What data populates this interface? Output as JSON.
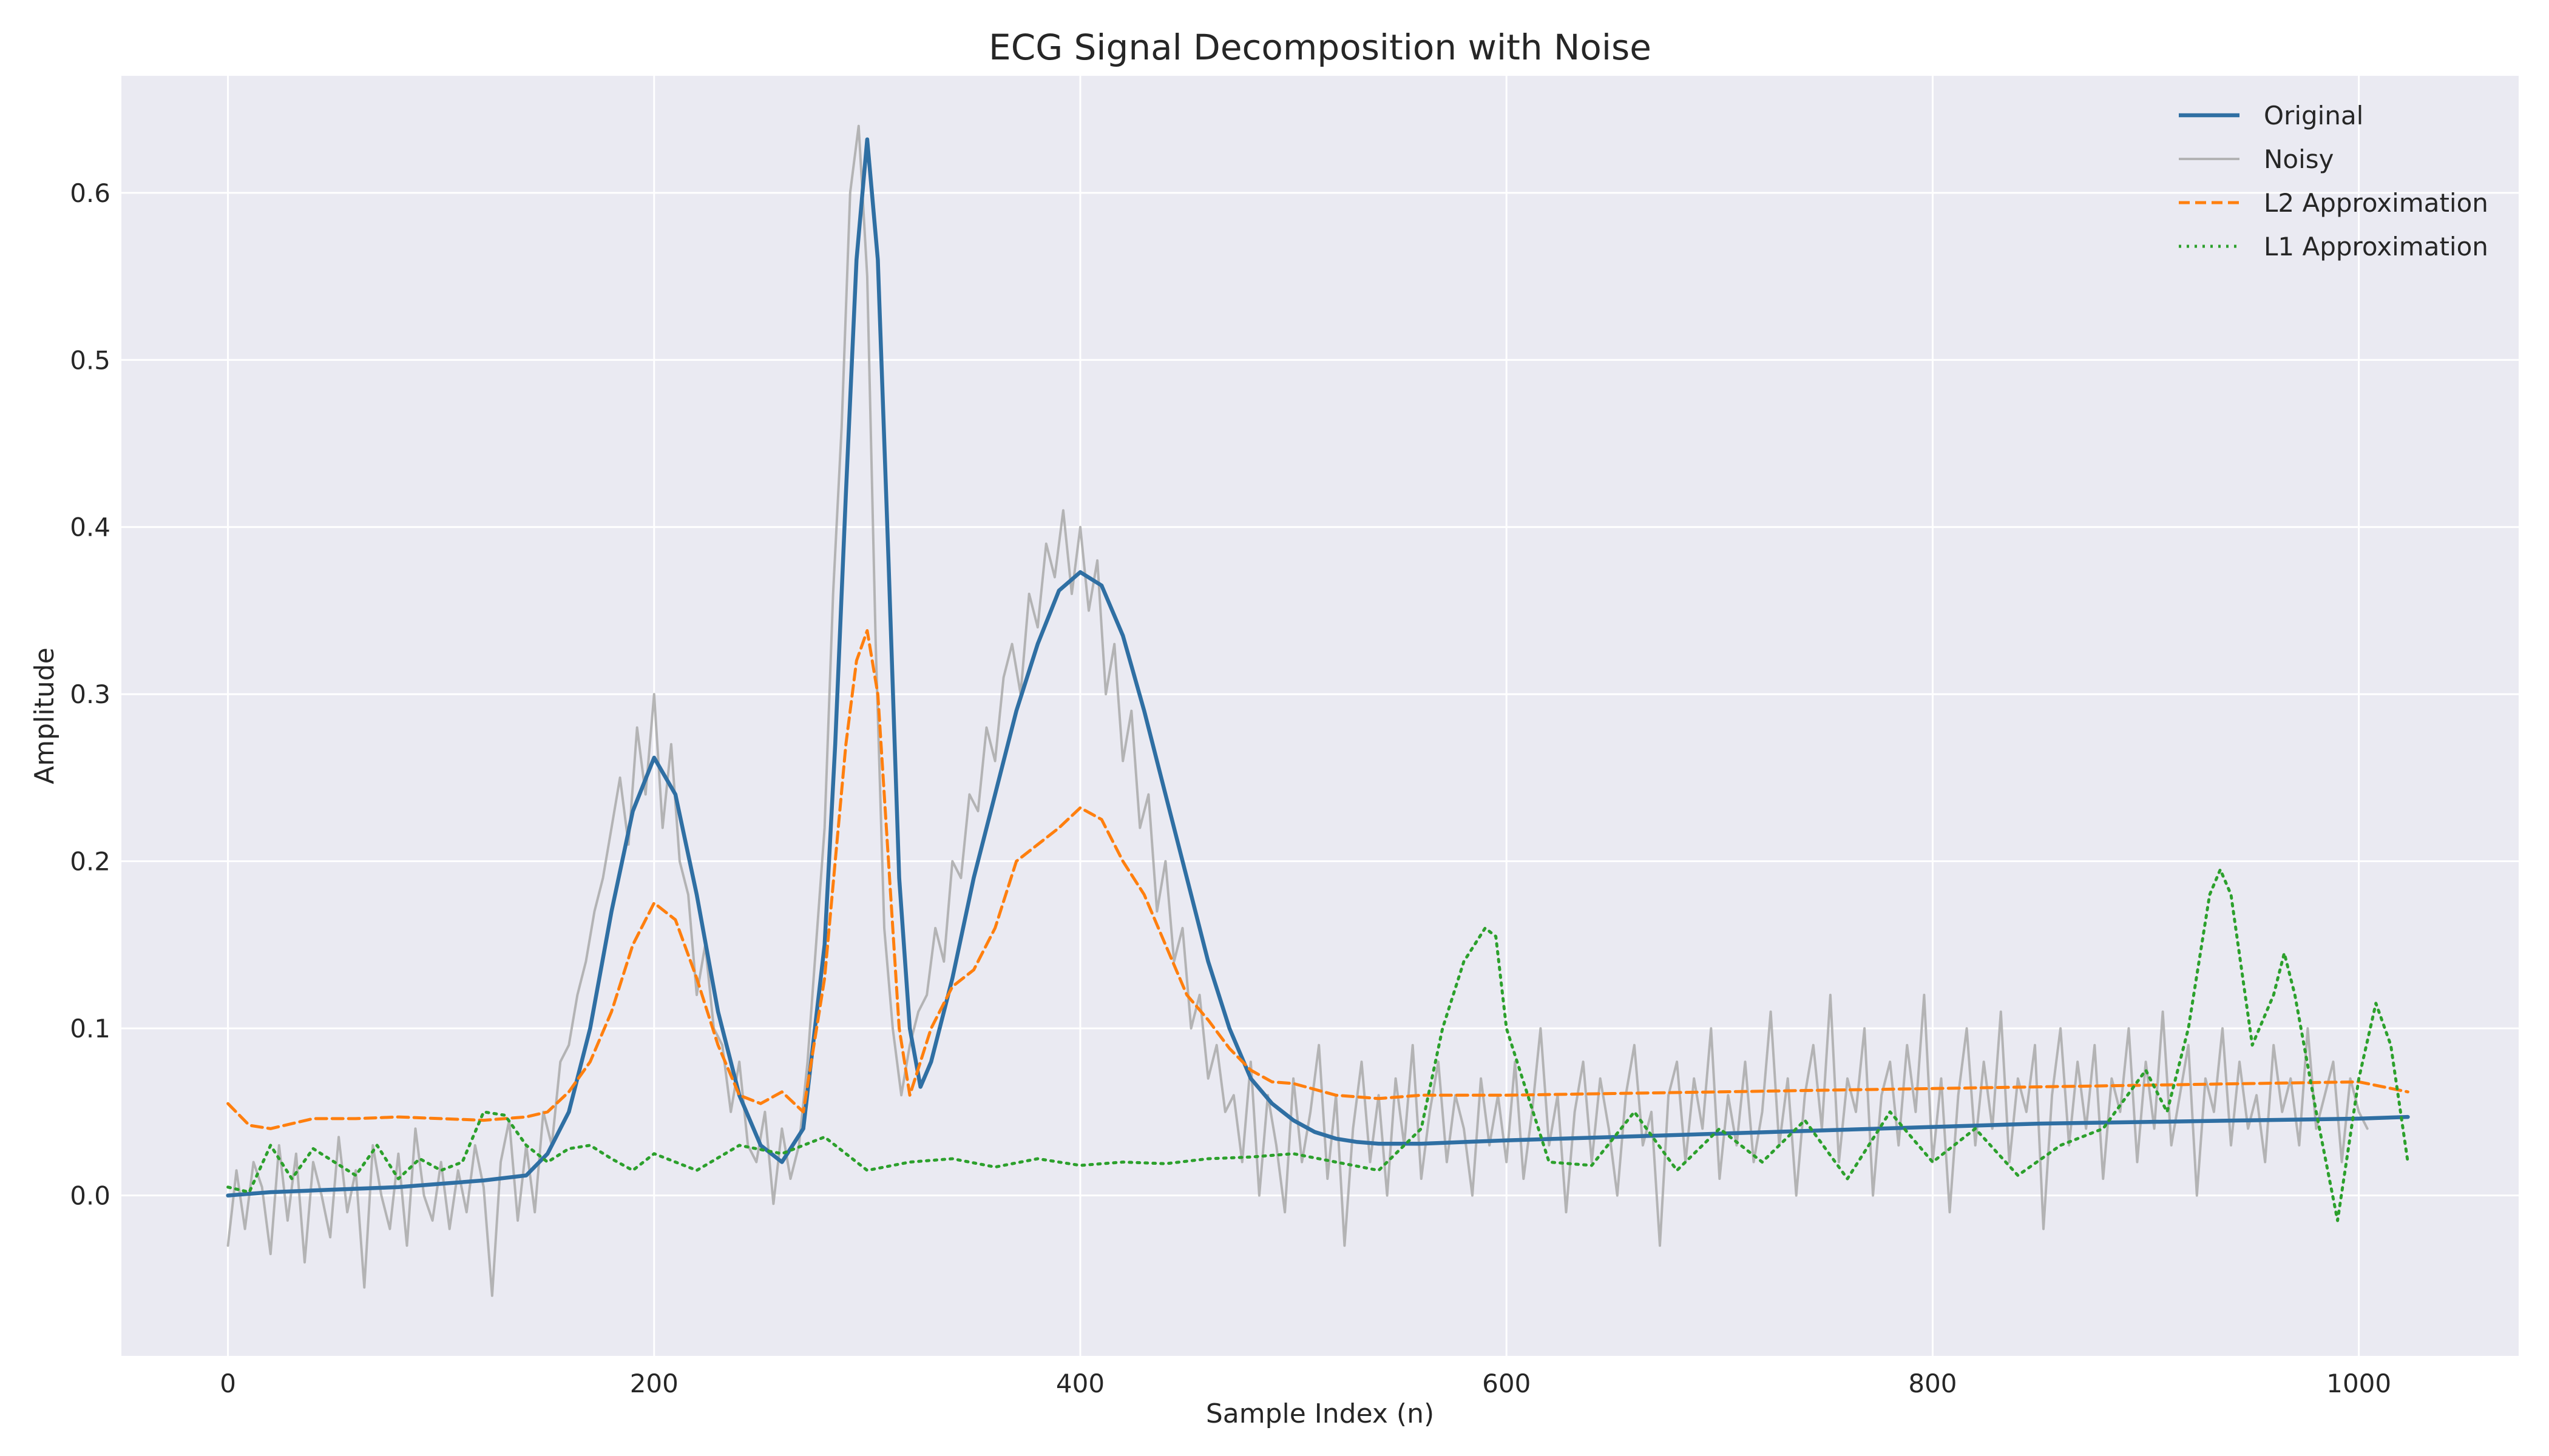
{
  "chart_data": {
    "type": "line",
    "title": "ECG Signal Decomposition with Noise",
    "xlabel": "Sample Index (n)",
    "ylabel": "Amplitude",
    "xlim": [
      -50,
      1075
    ],
    "ylim": [
      -0.096,
      0.67
    ],
    "x_ticks": [
      0,
      200,
      400,
      600,
      800,
      1000
    ],
    "x_tick_labels": [
      "0",
      "200",
      "400",
      "600",
      "800",
      "1000"
    ],
    "y_ticks": [
      0.0,
      0.1,
      0.2,
      0.3,
      0.4,
      0.5,
      0.6
    ],
    "y_tick_labels": [
      "0.0",
      "0.1",
      "0.2",
      "0.3",
      "0.4",
      "0.5",
      "0.6"
    ],
    "grid": true,
    "legend_position": "top-right",
    "colors": {
      "plot_background": "#eaeaf2",
      "original": "#2f6fa3",
      "noisy": "#a9a9a9",
      "l2": "#ff7f0e",
      "l1": "#2ca02c"
    },
    "series": [
      {
        "name": "Original",
        "style": "solid",
        "x": [
          0,
          20,
          40,
          60,
          80,
          100,
          120,
          140,
          150,
          160,
          170,
          180,
          190,
          200,
          210,
          220,
          230,
          240,
          250,
          260,
          270,
          280,
          285,
          290,
          295,
          300,
          305,
          310,
          315,
          320,
          325,
          330,
          340,
          350,
          360,
          370,
          380,
          390,
          400,
          410,
          420,
          430,
          440,
          450,
          460,
          470,
          480,
          490,
          500,
          510,
          520,
          530,
          540,
          560,
          600,
          650,
          700,
          750,
          800,
          850,
          900,
          950,
          1000,
          1023
        ],
        "values": [
          0.0,
          0.002,
          0.003,
          0.004,
          0.005,
          0.007,
          0.009,
          0.012,
          0.025,
          0.05,
          0.1,
          0.17,
          0.23,
          0.262,
          0.24,
          0.18,
          0.11,
          0.06,
          0.03,
          0.02,
          0.04,
          0.15,
          0.27,
          0.42,
          0.56,
          0.632,
          0.56,
          0.38,
          0.19,
          0.1,
          0.065,
          0.08,
          0.13,
          0.19,
          0.24,
          0.29,
          0.33,
          0.362,
          0.373,
          0.365,
          0.335,
          0.29,
          0.24,
          0.19,
          0.14,
          0.1,
          0.07,
          0.055,
          0.045,
          0.038,
          0.034,
          0.032,
          0.031,
          0.031,
          0.033,
          0.035,
          0.037,
          0.039,
          0.041,
          0.043,
          0.044,
          0.045,
          0.046,
          0.047
        ]
      },
      {
        "name": "Noisy",
        "style": "solid",
        "x_start": 0,
        "x_step": 4,
        "values": [
          -0.03,
          0.015,
          -0.02,
          0.02,
          0.005,
          -0.035,
          0.03,
          -0.015,
          0.025,
          -0.04,
          0.02,
          0.0,
          -0.025,
          0.035,
          -0.01,
          0.015,
          -0.055,
          0.03,
          0.0,
          -0.02,
          0.025,
          -0.03,
          0.04,
          0.0,
          -0.015,
          0.02,
          -0.02,
          0.015,
          -0.01,
          0.03,
          0.005,
          -0.06,
          0.02,
          0.045,
          -0.015,
          0.03,
          -0.01,
          0.05,
          0.03,
          0.08,
          0.09,
          0.12,
          0.14,
          0.17,
          0.19,
          0.22,
          0.25,
          0.21,
          0.28,
          0.24,
          0.3,
          0.22,
          0.27,
          0.2,
          0.18,
          0.12,
          0.15,
          0.1,
          0.09,
          0.05,
          0.08,
          0.03,
          0.02,
          0.05,
          -0.005,
          0.04,
          0.01,
          0.03,
          0.08,
          0.15,
          0.22,
          0.36,
          0.46,
          0.6,
          0.64,
          0.55,
          0.33,
          0.16,
          0.1,
          0.06,
          0.09,
          0.11,
          0.12,
          0.16,
          0.14,
          0.2,
          0.19,
          0.24,
          0.23,
          0.28,
          0.26,
          0.31,
          0.33,
          0.3,
          0.36,
          0.34,
          0.39,
          0.37,
          0.41,
          0.36,
          0.4,
          0.35,
          0.38,
          0.3,
          0.33,
          0.26,
          0.29,
          0.22,
          0.24,
          0.17,
          0.2,
          0.14,
          0.16,
          0.1,
          0.12,
          0.07,
          0.09,
          0.05,
          0.06,
          0.02,
          0.08,
          0.0,
          0.06,
          0.03,
          -0.01,
          0.07,
          0.02,
          0.05,
          0.09,
          0.01,
          0.06,
          -0.03,
          0.04,
          0.08,
          0.02,
          0.06,
          0.0,
          0.07,
          0.03,
          0.09,
          0.01,
          0.05,
          0.08,
          0.02,
          0.06,
          0.04,
          0.0,
          0.07,
          0.03,
          0.06,
          0.02,
          0.08,
          0.01,
          0.05,
          0.1,
          0.03,
          0.06,
          -0.01,
          0.05,
          0.08,
          0.02,
          0.07,
          0.04,
          0.0,
          0.06,
          0.09,
          0.03,
          0.05,
          -0.03,
          0.06,
          0.08,
          0.02,
          0.07,
          0.04,
          0.1,
          0.01,
          0.06,
          0.03,
          0.08,
          0.02,
          0.05,
          0.11,
          0.03,
          0.07,
          0.0,
          0.06,
          0.09,
          0.04,
          0.12,
          0.02,
          0.07,
          0.05,
          0.1,
          0.0,
          0.06,
          0.08,
          0.03,
          0.09,
          0.05,
          0.12,
          0.02,
          0.07,
          -0.01,
          0.06,
          0.1,
          0.03,
          0.08,
          0.04,
          0.11,
          0.02,
          0.07,
          0.05,
          0.09,
          -0.02,
          0.06,
          0.1,
          0.03,
          0.08,
          0.04,
          0.09,
          0.01,
          0.07,
          0.05,
          0.1,
          0.02,
          0.08,
          0.04,
          0.11,
          0.03,
          0.06,
          0.09,
          0.0,
          0.07,
          0.05,
          0.1,
          0.03,
          0.08,
          0.04,
          0.06,
          0.02,
          0.09,
          0.05,
          0.07,
          0.03,
          0.1,
          0.04,
          0.06,
          0.08,
          0.02,
          0.07,
          0.05,
          0.04
        ]
      },
      {
        "name": "L2 Approximation",
        "style": "dashed",
        "x": [
          0,
          10,
          20,
          40,
          60,
          80,
          100,
          120,
          140,
          150,
          160,
          170,
          180,
          190,
          200,
          210,
          220,
          230,
          240,
          250,
          260,
          270,
          280,
          285,
          290,
          295,
          300,
          305,
          310,
          315,
          320,
          330,
          340,
          350,
          360,
          370,
          380,
          390,
          400,
          410,
          420,
          430,
          440,
          450,
          460,
          470,
          480,
          490,
          500,
          520,
          540,
          560,
          600,
          650,
          700,
          750,
          800,
          850,
          900,
          950,
          1000,
          1023
        ],
        "values": [
          0.055,
          0.042,
          0.04,
          0.046,
          0.046,
          0.047,
          0.046,
          0.045,
          0.047,
          0.05,
          0.062,
          0.08,
          0.11,
          0.15,
          0.175,
          0.165,
          0.13,
          0.09,
          0.06,
          0.055,
          0.062,
          0.05,
          0.13,
          0.2,
          0.27,
          0.32,
          0.338,
          0.3,
          0.2,
          0.1,
          0.06,
          0.1,
          0.125,
          0.135,
          0.16,
          0.2,
          0.21,
          0.22,
          0.232,
          0.225,
          0.2,
          0.18,
          0.15,
          0.12,
          0.105,
          0.088,
          0.075,
          0.068,
          0.067,
          0.06,
          0.058,
          0.06,
          0.06,
          0.061,
          0.062,
          0.063,
          0.064,
          0.065,
          0.066,
          0.067,
          0.068,
          0.062
        ]
      },
      {
        "name": "L1 Approximation",
        "style": "dotted",
        "x": [
          0,
          10,
          20,
          30,
          40,
          50,
          60,
          70,
          80,
          90,
          100,
          110,
          120,
          130,
          140,
          150,
          160,
          170,
          180,
          190,
          200,
          220,
          240,
          260,
          280,
          300,
          320,
          340,
          360,
          380,
          400,
          420,
          440,
          460,
          480,
          500,
          520,
          540,
          560,
          570,
          580,
          590,
          595,
          600,
          610,
          620,
          640,
          660,
          680,
          700,
          720,
          740,
          760,
          780,
          800,
          820,
          840,
          860,
          880,
          900,
          910,
          920,
          930,
          935,
          940,
          950,
          960,
          965,
          970,
          980,
          990,
          1000,
          1008,
          1015,
          1023
        ],
        "values": [
          0.005,
          0.002,
          0.03,
          0.01,
          0.028,
          0.02,
          0.012,
          0.03,
          0.01,
          0.022,
          0.015,
          0.02,
          0.05,
          0.048,
          0.03,
          0.02,
          0.028,
          0.03,
          0.022,
          0.015,
          0.025,
          0.015,
          0.03,
          0.025,
          0.035,
          0.015,
          0.02,
          0.022,
          0.017,
          0.022,
          0.018,
          0.02,
          0.019,
          0.022,
          0.023,
          0.025,
          0.02,
          0.015,
          0.04,
          0.1,
          0.14,
          0.16,
          0.155,
          0.1,
          0.06,
          0.02,
          0.018,
          0.05,
          0.015,
          0.04,
          0.02,
          0.045,
          0.01,
          0.05,
          0.02,
          0.04,
          0.012,
          0.03,
          0.04,
          0.075,
          0.05,
          0.1,
          0.18,
          0.195,
          0.18,
          0.09,
          0.12,
          0.145,
          0.12,
          0.05,
          -0.015,
          0.07,
          0.115,
          0.09,
          0.02
        ]
      }
    ]
  }
}
